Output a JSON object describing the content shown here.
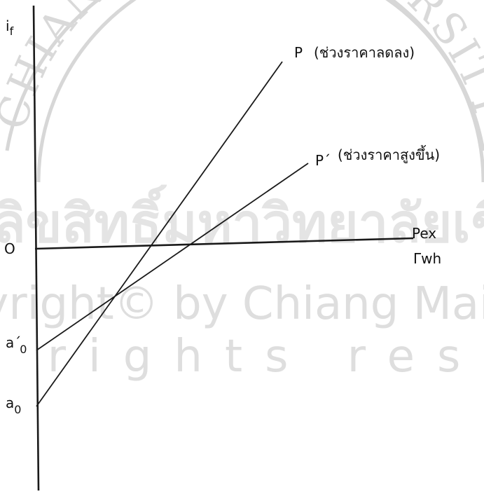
{
  "watermark": {
    "seal_text": "CHIANG MAI UNIVERSITY",
    "thai_text": "ลิขสิทธิ์มหาวิทยาลัยเชียงใหม่",
    "copyright_text": "Copyright© by Chiang Mai University",
    "rights_text": "All rights reserved"
  },
  "axes": {
    "y_label_main": "i",
    "y_label_sub": "f",
    "origin_label": "O",
    "x_label_line1": "Pex",
    "x_label_line2": "Γwh"
  },
  "lines": {
    "p_label": "P",
    "p_note": "(ช่วงราคาลดลง)",
    "p_prime_label": "P´",
    "p_prime_note": "(ช่วงราคาสูงขึ้น)"
  },
  "intercepts": {
    "a0_prime_main": "a´",
    "a0_prime_sub": "0",
    "a0_main": "a",
    "a0_sub": "0"
  },
  "colors": {
    "ink": "#1a1a1a",
    "watermark": "#dcdcdc"
  }
}
